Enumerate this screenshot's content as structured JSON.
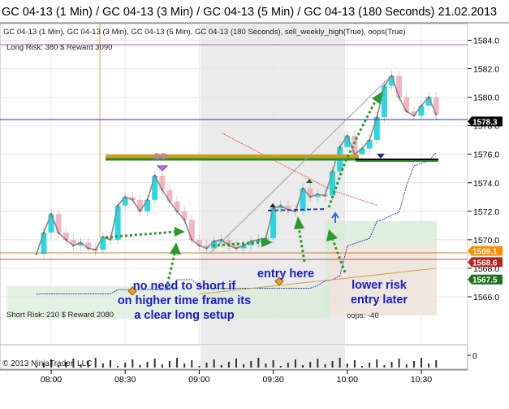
{
  "window": {
    "title": "GC 04-13 (1 Min) / GC 04-13 (3 Min) / GC 04-13 (5 Min) / GC 04-13 (180 Seconds)  21.02.2013"
  },
  "chart": {
    "indicator_line": "GC 04-13 (1 Min), GC 04-13 (3 Min), GC 04-13 (5 Min), GC 04-13 (180 Seconds), sell_weekly_high(True), oops(True)",
    "long_risk": "Long Risk: 380 $ Reward 3090",
    "short_risk": "Short Risk: 210 $ Reward 2080",
    "oops_label": "oops: -40",
    "copyright": "© 2013 NinjaTrader, LLC"
  },
  "annotations": [
    {
      "text": "no need to short if on higher time frame its a clear long setup"
    },
    {
      "text": "entry here"
    },
    {
      "text": "lower risk entry later"
    }
  ],
  "markers": {
    "divergence": "DD"
  },
  "colors": {
    "annotation_text": "#1a1acc",
    "bull_candle": "#1ed6e0",
    "bear_candle": "#f4a9b8",
    "arrow_green": "#2a9a2a",
    "price_band": "#3c3cc8",
    "price_line": "#888888",
    "red_line": "#e06060"
  },
  "chart_data": {
    "type": "line",
    "title": "",
    "xlabel": "",
    "ylabel": "",
    "x_ticks": [
      "08:00",
      "08:30",
      "09:00",
      "09:30",
      "10:00",
      "10:30"
    ],
    "y_ticks": [
      1566.0,
      1568.0,
      1570.0,
      1572.0,
      1574.0,
      1576.0,
      1578.0,
      1580.0,
      1582.0,
      1584.0
    ],
    "ylim": [
      1564.5,
      1585.0
    ],
    "price_flags": [
      {
        "label": "1578.3",
        "value": 1578.3
      },
      {
        "label": "1569.1",
        "value": 1569.1
      },
      {
        "label": "1568.6",
        "value": 1568.6
      },
      {
        "label": "1567.5",
        "value": 1567.5
      }
    ],
    "volume_axis_tick": "0",
    "series": [
      {
        "values": [
          {
            "t": "07:54",
            "v": 1569.0
          },
          {
            "t": "07:57",
            "v": 1570.5
          },
          {
            "t": "08:00",
            "v": 1571.8
          },
          {
            "t": "08:03",
            "v": 1570.5
          },
          {
            "t": "08:06",
            "v": 1570.0
          },
          {
            "t": "08:09",
            "v": 1569.6
          },
          {
            "t": "08:12",
            "v": 1569.8
          },
          {
            "t": "08:15",
            "v": 1569.4
          },
          {
            "t": "08:18",
            "v": 1569.3
          },
          {
            "t": "08:21",
            "v": 1570.2
          },
          {
            "t": "08:24",
            "v": 1570.0
          },
          {
            "t": "08:27",
            "v": 1572.4
          },
          {
            "t": "08:30",
            "v": 1573.0
          },
          {
            "t": "08:33",
            "v": 1572.8
          },
          {
            "t": "08:36",
            "v": 1572.0
          },
          {
            "t": "08:39",
            "v": 1572.8
          },
          {
            "t": "08:42",
            "v": 1574.5
          },
          {
            "t": "08:45",
            "v": 1573.5
          },
          {
            "t": "08:48",
            "v": 1572.7
          },
          {
            "t": "08:51",
            "v": 1572.0
          },
          {
            "t": "08:54",
            "v": 1571.4
          },
          {
            "t": "08:57",
            "v": 1570.0
          },
          {
            "t": "09:00",
            "v": 1569.6
          },
          {
            "t": "09:03",
            "v": 1569.4
          },
          {
            "t": "09:06",
            "v": 1569.9
          },
          {
            "t": "09:09",
            "v": 1570.0
          },
          {
            "t": "09:12",
            "v": 1569.6
          },
          {
            "t": "09:15",
            "v": 1569.4
          },
          {
            "t": "09:18",
            "v": 1569.6
          },
          {
            "t": "09:21",
            "v": 1569.9
          },
          {
            "t": "09:24",
            "v": 1570.0
          },
          {
            "t": "09:27",
            "v": 1570.1
          },
          {
            "t": "09:30",
            "v": 1572.2
          },
          {
            "t": "09:33",
            "v": 1572.4
          },
          {
            "t": "09:36",
            "v": 1572.1
          },
          {
            "t": "09:39",
            "v": 1572.0
          },
          {
            "t": "09:42",
            "v": 1573.6
          },
          {
            "t": "09:45",
            "v": 1573.0
          },
          {
            "t": "09:48",
            "v": 1573.2
          },
          {
            "t": "09:51",
            "v": 1573.1
          },
          {
            "t": "09:54",
            "v": 1574.8
          },
          {
            "t": "09:57",
            "v": 1576.5
          },
          {
            "t": "10:00",
            "v": 1577.3
          },
          {
            "t": "10:03",
            "v": 1576.0
          },
          {
            "t": "10:06",
            "v": 1576.4
          },
          {
            "t": "10:09",
            "v": 1577.0
          },
          {
            "t": "10:12",
            "v": 1578.6
          },
          {
            "t": "10:15",
            "v": 1580.8
          },
          {
            "t": "10:18",
            "v": 1581.5
          },
          {
            "t": "10:21",
            "v": 1580.0
          },
          {
            "t": "10:24",
            "v": 1579.0
          },
          {
            "t": "10:27",
            "v": 1578.7
          },
          {
            "t": "10:30",
            "v": 1579.4
          },
          {
            "t": "10:33",
            "v": 1580.0
          },
          {
            "t": "10:36",
            "v": 1578.8
          }
        ]
      }
    ]
  }
}
